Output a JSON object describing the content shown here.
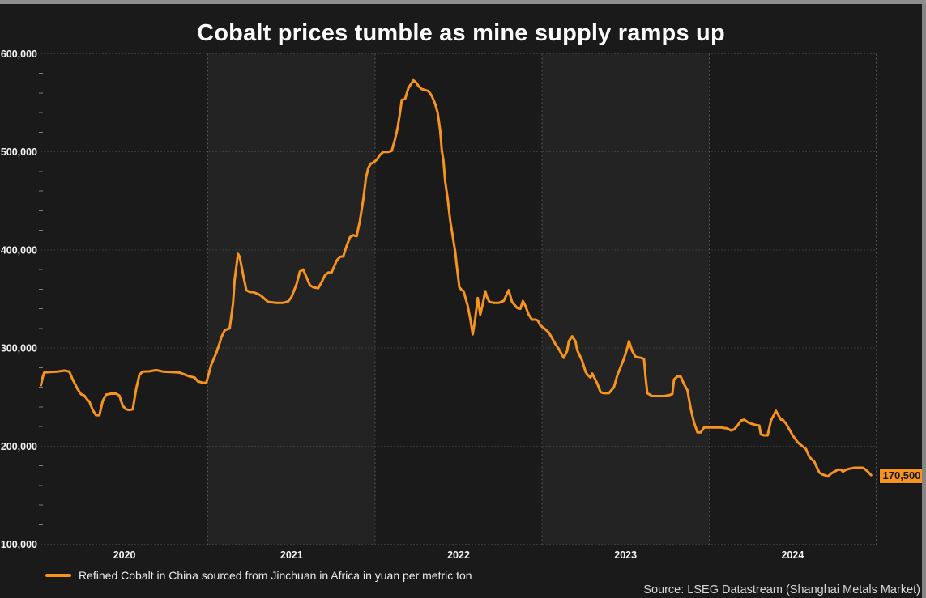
{
  "colors": {
    "accent": "#f7941e",
    "background": "#1a1a1a",
    "band_dark": "#1a1a1a",
    "band_light": "#232323",
    "grid": "#585858",
    "minor_tick": "#7d7d7d",
    "tick_text": "#f2f2f2",
    "title_text": "#fafafa",
    "frame_strip": "#8e8e8e",
    "label_bg": "#f7941e",
    "label_text": "#141414"
  },
  "chart_data": {
    "type": "line",
    "title": "Cobalt prices tumble as mine supply ramps up",
    "source": "Source: LSEG Datastream (Shanghai Metals Market)",
    "xlabel": "",
    "ylabel": "",
    "xlim": [
      2020,
      2025
    ],
    "ylim": [
      100000,
      600000
    ],
    "grid": "dotted",
    "banded_background": true,
    "legend_position": "bottom-left",
    "last_label": "170,500",
    "last_value": 170500,
    "y_ticks": [
      {
        "value": 600000,
        "label": "600,000"
      },
      {
        "value": 500000,
        "label": "500,000"
      },
      {
        "value": 400000,
        "label": "400,000"
      },
      {
        "value": 300000,
        "label": "300,000"
      },
      {
        "value": 200000,
        "label": "200,000"
      },
      {
        "value": 100000,
        "label": "100,000"
      }
    ],
    "x_ticks": [
      {
        "value": 2020.5,
        "label": "2020"
      },
      {
        "value": 2021.5,
        "label": "2021"
      },
      {
        "value": 2022.5,
        "label": "2022"
      },
      {
        "value": 2023.5,
        "label": "2023"
      },
      {
        "value": 2024.5,
        "label": "2024"
      }
    ],
    "series": [
      {
        "name": "Refined Cobalt in China sourced from Jinchuan in Africa in yuan per metric ton",
        "color": "#f7941e",
        "points": [
          [
            2020.0,
            262000
          ],
          [
            2020.01,
            270000
          ],
          [
            2020.02,
            275000
          ],
          [
            2020.05,
            275500
          ],
          [
            2020.1,
            276000
          ],
          [
            2020.14,
            277000
          ],
          [
            2020.17,
            276000
          ],
          [
            2020.19,
            268000
          ],
          [
            2020.22,
            258000
          ],
          [
            2020.24,
            253000
          ],
          [
            2020.26,
            251500
          ],
          [
            2020.28,
            247000
          ],
          [
            2020.29,
            245500
          ],
          [
            2020.31,
            237000
          ],
          [
            2020.33,
            231500
          ],
          [
            2020.35,
            231500
          ],
          [
            2020.37,
            246000
          ],
          [
            2020.39,
            252500
          ],
          [
            2020.42,
            253500
          ],
          [
            2020.45,
            253500
          ],
          [
            2020.47,
            251500
          ],
          [
            2020.49,
            241000
          ],
          [
            2020.51,
            237500
          ],
          [
            2020.53,
            236800
          ],
          [
            2020.55,
            237500
          ],
          [
            2020.57,
            258000
          ],
          [
            2020.59,
            273000
          ],
          [
            2020.61,
            276000
          ],
          [
            2020.65,
            276200
          ],
          [
            2020.69,
            277500
          ],
          [
            2020.73,
            276000
          ],
          [
            2020.78,
            275500
          ],
          [
            2020.83,
            275000
          ],
          [
            2020.86,
            273000
          ],
          [
            2020.89,
            271000
          ],
          [
            2020.92,
            270000
          ],
          [
            2020.94,
            266000
          ],
          [
            2020.97,
            264500
          ],
          [
            2020.99,
            264500
          ],
          [
            2021.02,
            283000
          ],
          [
            2021.05,
            295000
          ],
          [
            2021.07,
            305000
          ],
          [
            2021.08,
            311000
          ],
          [
            2021.1,
            318000
          ],
          [
            2021.12,
            319500
          ],
          [
            2021.13,
            320000
          ],
          [
            2021.15,
            345000
          ],
          [
            2021.16,
            370000
          ],
          [
            2021.18,
            396000
          ],
          [
            2021.19,
            393000
          ],
          [
            2021.21,
            375000
          ],
          [
            2021.23,
            359000
          ],
          [
            2021.25,
            357000
          ],
          [
            2021.27,
            357000
          ],
          [
            2021.3,
            355000
          ],
          [
            2021.32,
            353000
          ],
          [
            2021.36,
            347000
          ],
          [
            2021.41,
            346000
          ],
          [
            2021.45,
            346000
          ],
          [
            2021.48,
            347500
          ],
          [
            2021.5,
            352000
          ],
          [
            2021.53,
            365000
          ],
          [
            2021.55,
            378000
          ],
          [
            2021.57,
            380000
          ],
          [
            2021.59,
            372000
          ],
          [
            2021.61,
            364000
          ],
          [
            2021.63,
            362000
          ],
          [
            2021.66,
            361000
          ],
          [
            2021.68,
            367000
          ],
          [
            2021.7,
            374000
          ],
          [
            2021.72,
            377000
          ],
          [
            2021.74,
            377000
          ],
          [
            2021.77,
            389000
          ],
          [
            2021.79,
            393000
          ],
          [
            2021.81,
            393500
          ],
          [
            2021.83,
            404000
          ],
          [
            2021.85,
            413000
          ],
          [
            2021.87,
            415000
          ],
          [
            2021.89,
            414000
          ],
          [
            2021.91,
            430000
          ],
          [
            2021.93,
            452000
          ],
          [
            2021.945,
            473000
          ],
          [
            2021.96,
            484000
          ],
          [
            2021.975,
            488000
          ],
          [
            2021.99,
            489000
          ],
          [
            2022.01,
            492000
          ],
          [
            2022.03,
            497000
          ],
          [
            2022.05,
            500000
          ],
          [
            2022.08,
            500000
          ],
          [
            2022.1,
            501000
          ],
          [
            2022.12,
            513000
          ],
          [
            2022.135,
            524000
          ],
          [
            2022.15,
            540000
          ],
          [
            2022.16,
            553000
          ],
          [
            2022.18,
            554000
          ],
          [
            2022.2,
            565000
          ],
          [
            2022.23,
            573000
          ],
          [
            2022.25,
            570000
          ],
          [
            2022.26,
            567000
          ],
          [
            2022.28,
            564000
          ],
          [
            2022.3,
            563000
          ],
          [
            2022.32,
            562000
          ],
          [
            2022.34,
            557000
          ],
          [
            2022.36,
            549000
          ],
          [
            2022.375,
            540000
          ],
          [
            2022.39,
            522000
          ],
          [
            2022.4,
            501000
          ],
          [
            2022.41,
            491000
          ],
          [
            2022.42,
            470000
          ],
          [
            2022.435,
            452000
          ],
          [
            2022.45,
            430000
          ],
          [
            2022.465,
            414000
          ],
          [
            2022.48,
            398000
          ],
          [
            2022.49,
            383000
          ],
          [
            2022.505,
            362000
          ],
          [
            2022.52,
            359000
          ],
          [
            2022.53,
            358000
          ],
          [
            2022.555,
            343000
          ],
          [
            2022.57,
            330000
          ],
          [
            2022.585,
            314000
          ],
          [
            2022.6,
            330000
          ],
          [
            2022.615,
            351000
          ],
          [
            2022.63,
            334000
          ],
          [
            2022.645,
            345000
          ],
          [
            2022.66,
            358000
          ],
          [
            2022.67,
            352000
          ],
          [
            2022.685,
            347000
          ],
          [
            2022.71,
            346000
          ],
          [
            2022.74,
            346000
          ],
          [
            2022.77,
            348000
          ],
          [
            2022.8,
            359000
          ],
          [
            2022.82,
            347000
          ],
          [
            2022.85,
            341000
          ],
          [
            2022.87,
            340000
          ],
          [
            2022.885,
            348000
          ],
          [
            2022.9,
            343000
          ],
          [
            2022.92,
            334000
          ],
          [
            2022.94,
            329000
          ],
          [
            2022.96,
            329000
          ],
          [
            2022.975,
            328000
          ],
          [
            2022.99,
            323000
          ],
          [
            2023.02,
            319000
          ],
          [
            2023.04,
            316000
          ],
          [
            2023.06,
            310000
          ],
          [
            2023.08,
            304000
          ],
          [
            2023.1,
            299000
          ],
          [
            2023.12,
            293000
          ],
          [
            2023.13,
            290000
          ],
          [
            2023.15,
            297000
          ],
          [
            2023.16,
            307000
          ],
          [
            2023.18,
            312000
          ],
          [
            2023.2,
            307000
          ],
          [
            2023.21,
            298000
          ],
          [
            2023.24,
            287000
          ],
          [
            2023.26,
            276000
          ],
          [
            2023.27,
            273000
          ],
          [
            2023.29,
            270000
          ],
          [
            2023.3,
            274000
          ],
          [
            2023.33,
            264000
          ],
          [
            2023.35,
            255000
          ],
          [
            2023.37,
            254000
          ],
          [
            2023.4,
            254000
          ],
          [
            2023.43,
            260000
          ],
          [
            2023.45,
            272000
          ],
          [
            2023.49,
            289000
          ],
          [
            2023.51,
            300000
          ],
          [
            2023.52,
            307000
          ],
          [
            2023.54,
            297000
          ],
          [
            2023.56,
            291000
          ],
          [
            2023.59,
            290000
          ],
          [
            2023.61,
            289000
          ],
          [
            2023.62,
            270000
          ],
          [
            2023.63,
            254000
          ],
          [
            2023.66,
            251000
          ],
          [
            2023.69,
            251000
          ],
          [
            2023.73,
            251000
          ],
          [
            2023.76,
            252000
          ],
          [
            2023.78,
            253000
          ],
          [
            2023.79,
            268000
          ],
          [
            2023.81,
            271000
          ],
          [
            2023.83,
            271000
          ],
          [
            2023.85,
            263000
          ],
          [
            2023.87,
            257000
          ],
          [
            2023.89,
            238000
          ],
          [
            2023.91,
            224000
          ],
          [
            2023.93,
            214000
          ],
          [
            2023.95,
            214000
          ],
          [
            2023.97,
            219000
          ],
          [
            2024.0,
            219000
          ],
          [
            2024.03,
            219000
          ],
          [
            2024.07,
            219000
          ],
          [
            2024.11,
            218000
          ],
          [
            2024.13,
            216000
          ],
          [
            2024.15,
            217000
          ],
          [
            2024.17,
            221000
          ],
          [
            2024.19,
            226000
          ],
          [
            2024.21,
            227000
          ],
          [
            2024.23,
            224500
          ],
          [
            2024.25,
            223000
          ],
          [
            2024.28,
            221500
          ],
          [
            2024.3,
            221000
          ],
          [
            2024.31,
            212000
          ],
          [
            2024.33,
            211000
          ],
          [
            2024.35,
            211000
          ],
          [
            2024.37,
            226000
          ],
          [
            2024.4,
            236000
          ],
          [
            2024.41,
            233000
          ],
          [
            2024.43,
            227000
          ],
          [
            2024.44,
            227000
          ],
          [
            2024.46,
            223000
          ],
          [
            2024.48,
            217000
          ],
          [
            2024.5,
            211000
          ],
          [
            2024.53,
            204000
          ],
          [
            2024.55,
            201000
          ],
          [
            2024.58,
            197000
          ],
          [
            2024.6,
            189000
          ],
          [
            2024.63,
            184000
          ],
          [
            2024.64,
            180000
          ],
          [
            2024.66,
            173000
          ],
          [
            2024.68,
            171000
          ],
          [
            2024.7,
            170000
          ],
          [
            2024.71,
            169000
          ],
          [
            2024.73,
            172000
          ],
          [
            2024.75,
            174000
          ],
          [
            2024.77,
            176000
          ],
          [
            2024.79,
            176000
          ],
          [
            2024.8,
            174000
          ],
          [
            2024.82,
            176000
          ],
          [
            2024.84,
            177000
          ],
          [
            2024.87,
            178000
          ],
          [
            2024.89,
            178000
          ],
          [
            2024.92,
            178000
          ],
          [
            2024.93,
            177000
          ],
          [
            2024.95,
            174000
          ],
          [
            2024.97,
            170500
          ]
        ]
      }
    ]
  }
}
